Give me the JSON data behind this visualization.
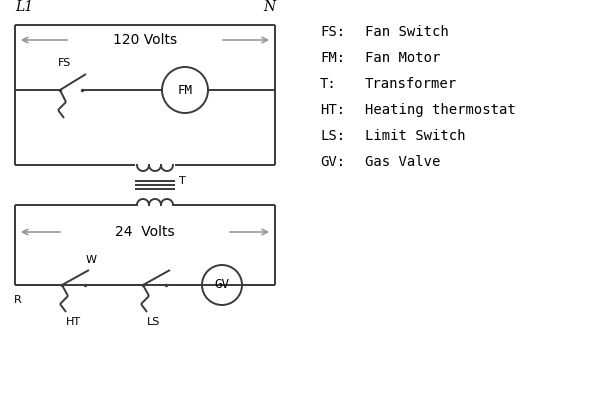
{
  "bg_color": "#ffffff",
  "line_color": "#3a3a3a",
  "arrow_color": "#909090",
  "text_color": "#000000",
  "legend": [
    [
      "FS:",
      "Fan Switch"
    ],
    [
      "FM:",
      "Fan Motor"
    ],
    [
      "T:",
      "Transformer"
    ],
    [
      "HT:",
      "Heating thermostat"
    ],
    [
      "LS:",
      "Limit Switch"
    ],
    [
      "GV:",
      "Gas Valve"
    ]
  ],
  "label_L1": "L1",
  "label_N": "N",
  "label_120V": "120 Volts",
  "label_24V": "24  Volts",
  "label_T": "T"
}
